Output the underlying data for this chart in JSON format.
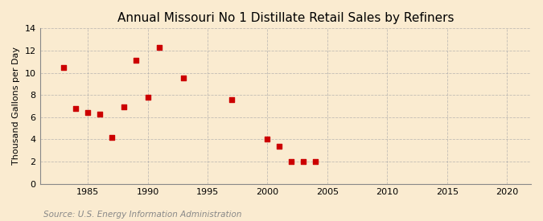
{
  "title": "Annual Missouri No 1 Distillate Retail Sales by Refiners",
  "ylabel": "Thousand Gallons per Day",
  "source": "Source: U.S. Energy Information Administration",
  "years": [
    1983,
    1984,
    1985,
    1986,
    1987,
    1988,
    1989,
    1990,
    1991,
    1993,
    1997,
    2000,
    2001,
    2002,
    2003,
    2004
  ],
  "values": [
    10.5,
    6.8,
    6.4,
    6.3,
    4.2,
    6.9,
    11.1,
    7.8,
    12.3,
    9.5,
    7.6,
    4.0,
    3.4,
    2.0,
    2.0,
    2.0
  ],
  "marker_color": "#cc0000",
  "marker": "s",
  "marker_size": 4,
  "xlim": [
    1981,
    2022
  ],
  "ylim": [
    0,
    14
  ],
  "xticks": [
    1985,
    1990,
    1995,
    2000,
    2005,
    2010,
    2015,
    2020
  ],
  "yticks": [
    0,
    2,
    4,
    6,
    8,
    10,
    12,
    14
  ],
  "background_color": "#faebd0",
  "grid_color": "#aaaaaa",
  "title_fontsize": 11,
  "label_fontsize": 8,
  "source_fontsize": 7.5,
  "source_color": "#888888"
}
